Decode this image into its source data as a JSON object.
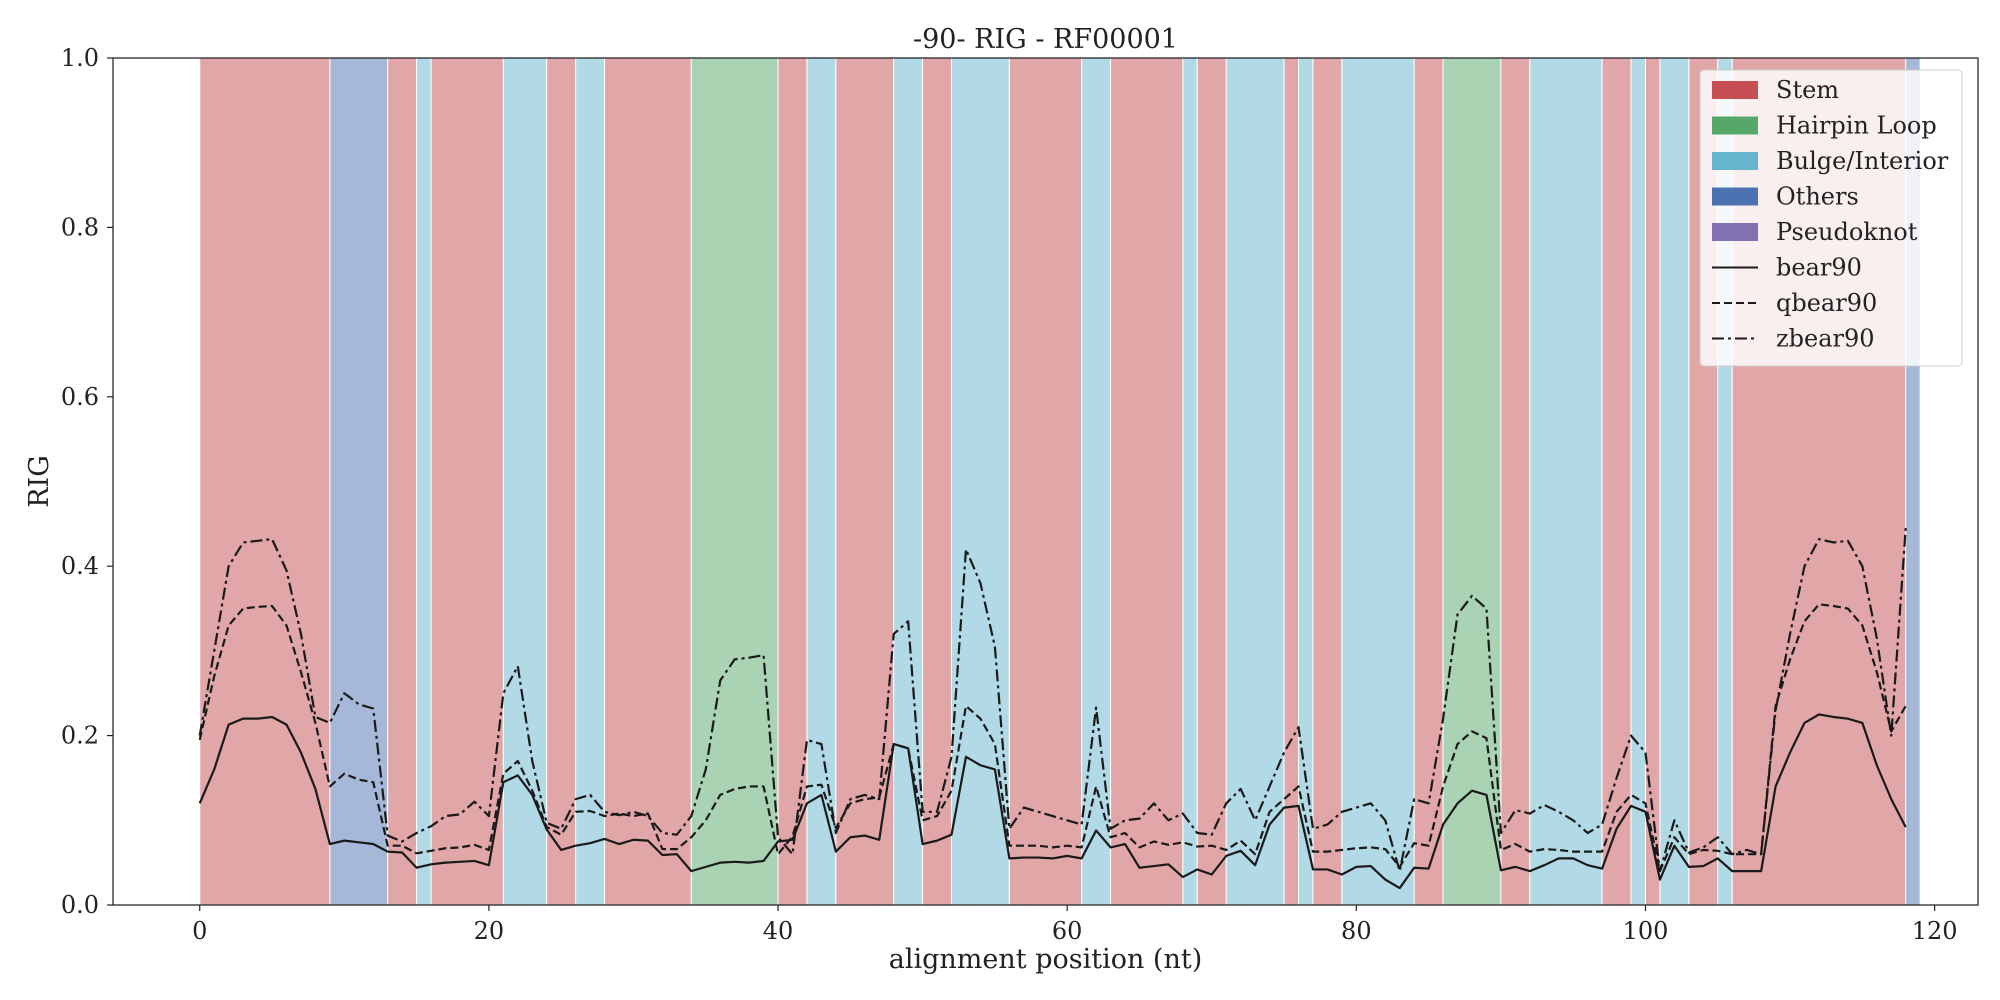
{
  "chart_data": {
    "type": "line",
    "title": "-90- RIG - RF00001",
    "xlabel": "alignment position (nt)",
    "ylabel": "RIG",
    "xlim": [
      -6,
      123
    ],
    "ylim": [
      0,
      1
    ],
    "xticks": [
      0,
      20,
      40,
      60,
      80,
      100,
      120
    ],
    "yticks": [
      0.0,
      0.2,
      0.4,
      0.6,
      0.8,
      1.0
    ],
    "xtick_labels": [
      "0",
      "20",
      "40",
      "60",
      "80",
      "100",
      "120"
    ],
    "ytick_labels": [
      "0.0",
      "0.2",
      "0.4",
      "0.6",
      "0.8",
      "1.0"
    ],
    "grid": false,
    "legend_position": "top-right",
    "colors": {
      "Stem": "#c44e52",
      "Hairpin Loop": "#55a868",
      "Bulge/Interior": "#64b5cd",
      "Others": "#4c72b0",
      "Pseudoknot": "#8172b2",
      "line": "#1a1a1a"
    },
    "legend": [
      {
        "label": "Stem",
        "kind": "patch",
        "color": "#c44e52"
      },
      {
        "label": "Hairpin Loop",
        "kind": "patch",
        "color": "#55a868"
      },
      {
        "label": "Bulge/Interior",
        "kind": "patch",
        "color": "#64b5cd"
      },
      {
        "label": "Others",
        "kind": "patch",
        "color": "#4c72b0"
      },
      {
        "label": "Pseudoknot",
        "kind": "patch",
        "color": "#8172b2"
      },
      {
        "label": "bear90",
        "kind": "line",
        "dash": "solid"
      },
      {
        "label": "qbear90",
        "kind": "line",
        "dash": "dashed"
      },
      {
        "label": "zbear90",
        "kind": "line",
        "dash": "dashdot"
      }
    ],
    "regions": [
      {
        "start": 0,
        "end": 9,
        "type": "Stem"
      },
      {
        "start": 9,
        "end": 13,
        "type": "Others"
      },
      {
        "start": 13,
        "end": 15,
        "type": "Stem"
      },
      {
        "start": 15,
        "end": 16,
        "type": "Bulge/Interior"
      },
      {
        "start": 16,
        "end": 21,
        "type": "Stem"
      },
      {
        "start": 21,
        "end": 24,
        "type": "Bulge/Interior"
      },
      {
        "start": 24,
        "end": 26,
        "type": "Stem"
      },
      {
        "start": 26,
        "end": 28,
        "type": "Bulge/Interior"
      },
      {
        "start": 28,
        "end": 34,
        "type": "Stem"
      },
      {
        "start": 34,
        "end": 40,
        "type": "Hairpin Loop"
      },
      {
        "start": 40,
        "end": 42,
        "type": "Stem"
      },
      {
        "start": 42,
        "end": 44,
        "type": "Bulge/Interior"
      },
      {
        "start": 44,
        "end": 48,
        "type": "Stem"
      },
      {
        "start": 48,
        "end": 50,
        "type": "Bulge/Interior"
      },
      {
        "start": 50,
        "end": 52,
        "type": "Stem"
      },
      {
        "start": 52,
        "end": 56,
        "type": "Bulge/Interior"
      },
      {
        "start": 56,
        "end": 61,
        "type": "Stem"
      },
      {
        "start": 61,
        "end": 63,
        "type": "Bulge/Interior"
      },
      {
        "start": 63,
        "end": 68,
        "type": "Stem"
      },
      {
        "start": 68,
        "end": 69,
        "type": "Bulge/Interior"
      },
      {
        "start": 69,
        "end": 71,
        "type": "Stem"
      },
      {
        "start": 71,
        "end": 75,
        "type": "Bulge/Interior"
      },
      {
        "start": 75,
        "end": 76,
        "type": "Stem"
      },
      {
        "start": 76,
        "end": 77,
        "type": "Bulge/Interior"
      },
      {
        "start": 77,
        "end": 79,
        "type": "Stem"
      },
      {
        "start": 79,
        "end": 84,
        "type": "Bulge/Interior"
      },
      {
        "start": 84,
        "end": 86,
        "type": "Stem"
      },
      {
        "start": 86,
        "end": 90,
        "type": "Hairpin Loop"
      },
      {
        "start": 90,
        "end": 92,
        "type": "Stem"
      },
      {
        "start": 92,
        "end": 97,
        "type": "Bulge/Interior"
      },
      {
        "start": 97,
        "end": 99,
        "type": "Stem"
      },
      {
        "start": 99,
        "end": 100,
        "type": "Bulge/Interior"
      },
      {
        "start": 100,
        "end": 101,
        "type": "Stem"
      },
      {
        "start": 101,
        "end": 103,
        "type": "Bulge/Interior"
      },
      {
        "start": 103,
        "end": 105,
        "type": "Stem"
      },
      {
        "start": 105,
        "end": 106,
        "type": "Bulge/Interior"
      },
      {
        "start": 106,
        "end": 118,
        "type": "Stem"
      },
      {
        "start": 118,
        "end": 119,
        "type": "Others"
      }
    ],
    "x": [
      0,
      1,
      2,
      3,
      4,
      5,
      6,
      7,
      8,
      9,
      10,
      11,
      12,
      13,
      14,
      15,
      16,
      17,
      18,
      19,
      20,
      21,
      22,
      23,
      24,
      25,
      26,
      27,
      28,
      29,
      30,
      31,
      32,
      33,
      34,
      35,
      36,
      37,
      38,
      39,
      40,
      41,
      42,
      43,
      44,
      45,
      46,
      47,
      48,
      49,
      50,
      51,
      52,
      53,
      54,
      55,
      56,
      57,
      58,
      59,
      60,
      61,
      62,
      63,
      64,
      65,
      66,
      67,
      68,
      69,
      70,
      71,
      72,
      73,
      74,
      75,
      76,
      77,
      78,
      79,
      80,
      81,
      82,
      83,
      84,
      85,
      86,
      87,
      88,
      89,
      90,
      91,
      92,
      93,
      94,
      95,
      96,
      97,
      98,
      99,
      100,
      101,
      102,
      103,
      104,
      105,
      106,
      107,
      108,
      109,
      110,
      111,
      112,
      113,
      114,
      115,
      116,
      117,
      118
    ],
    "series": [
      {
        "name": "bear90",
        "dash": "solid",
        "values": [
          0.12,
          0.16,
          0.213,
          0.22,
          0.22,
          0.222,
          0.213,
          0.18,
          0.137,
          0.072,
          0.076,
          0.074,
          0.072,
          0.063,
          0.062,
          0.044,
          0.048,
          0.05,
          0.051,
          0.052,
          0.047,
          0.145,
          0.153,
          0.13,
          0.089,
          0.065,
          0.07,
          0.073,
          0.078,
          0.072,
          0.077,
          0.076,
          0.059,
          0.06,
          0.04,
          0.045,
          0.05,
          0.051,
          0.05,
          0.052,
          0.075,
          0.077,
          0.12,
          0.13,
          0.063,
          0.08,
          0.082,
          0.077,
          0.19,
          0.185,
          0.072,
          0.076,
          0.083,
          0.175,
          0.165,
          0.16,
          0.055,
          0.056,
          0.056,
          0.055,
          0.058,
          0.055,
          0.088,
          0.068,
          0.072,
          0.044,
          0.046,
          0.048,
          0.033,
          0.042,
          0.036,
          0.058,
          0.064,
          0.047,
          0.095,
          0.115,
          0.117,
          0.042,
          0.042,
          0.036,
          0.045,
          0.046,
          0.03,
          0.02,
          0.044,
          0.043,
          0.095,
          0.12,
          0.135,
          0.13,
          0.041,
          0.045,
          0.04,
          0.047,
          0.055,
          0.055,
          0.047,
          0.043,
          0.09,
          0.117,
          0.11,
          0.03,
          0.07,
          0.045,
          0.046,
          0.055,
          0.04,
          0.04,
          0.04,
          0.14,
          0.18,
          0.215,
          0.225,
          0.222,
          0.22,
          0.215,
          0.165,
          0.125,
          0.092
        ]
      },
      {
        "name": "qbear90",
        "dash": "dashed",
        "values": [
          0.195,
          0.27,
          0.33,
          0.35,
          0.352,
          0.353,
          0.33,
          0.275,
          0.215,
          0.14,
          0.155,
          0.148,
          0.145,
          0.07,
          0.07,
          0.061,
          0.064,
          0.067,
          0.068,
          0.071,
          0.065,
          0.155,
          0.17,
          0.135,
          0.092,
          0.083,
          0.11,
          0.111,
          0.105,
          0.108,
          0.105,
          0.108,
          0.066,
          0.066,
          0.08,
          0.1,
          0.13,
          0.137,
          0.14,
          0.14,
          0.06,
          0.081,
          0.14,
          0.142,
          0.091,
          0.12,
          0.125,
          0.127,
          0.19,
          0.185,
          0.1,
          0.105,
          0.135,
          0.235,
          0.22,
          0.19,
          0.07,
          0.07,
          0.07,
          0.068,
          0.07,
          0.068,
          0.14,
          0.08,
          0.085,
          0.068,
          0.075,
          0.071,
          0.074,
          0.069,
          0.07,
          0.065,
          0.076,
          0.06,
          0.11,
          0.125,
          0.14,
          0.063,
          0.063,
          0.065,
          0.067,
          0.068,
          0.066,
          0.045,
          0.073,
          0.07,
          0.14,
          0.19,
          0.205,
          0.197,
          0.065,
          0.072,
          0.063,
          0.066,
          0.065,
          0.063,
          0.063,
          0.063,
          0.11,
          0.13,
          0.12,
          0.04,
          0.08,
          0.06,
          0.065,
          0.064,
          0.06,
          0.06,
          0.06,
          0.235,
          0.29,
          0.335,
          0.355,
          0.353,
          0.35,
          0.33,
          0.275,
          0.205,
          0.235
        ]
      },
      {
        "name": "zbear90",
        "dash": "dashdot",
        "values": [
          0.2,
          0.3,
          0.4,
          0.428,
          0.43,
          0.432,
          0.395,
          0.32,
          0.222,
          0.215,
          0.25,
          0.237,
          0.232,
          0.082,
          0.075,
          0.085,
          0.093,
          0.105,
          0.107,
          0.122,
          0.105,
          0.25,
          0.282,
          0.17,
          0.097,
          0.09,
          0.125,
          0.13,
          0.11,
          0.106,
          0.11,
          0.105,
          0.085,
          0.083,
          0.105,
          0.16,
          0.265,
          0.29,
          0.292,
          0.295,
          0.08,
          0.06,
          0.195,
          0.19,
          0.085,
          0.125,
          0.13,
          0.125,
          0.32,
          0.335,
          0.11,
          0.11,
          0.175,
          0.42,
          0.38,
          0.305,
          0.09,
          0.115,
          0.11,
          0.105,
          0.1,
          0.095,
          0.233,
          0.09,
          0.1,
          0.102,
          0.12,
          0.1,
          0.108,
          0.085,
          0.083,
          0.12,
          0.137,
          0.1,
          0.14,
          0.18,
          0.21,
          0.09,
          0.095,
          0.11,
          0.115,
          0.12,
          0.1,
          0.04,
          0.125,
          0.12,
          0.22,
          0.343,
          0.365,
          0.35,
          0.085,
          0.112,
          0.108,
          0.118,
          0.11,
          0.1,
          0.085,
          0.095,
          0.15,
          0.2,
          0.18,
          0.04,
          0.1,
          0.062,
          0.068,
          0.08,
          0.06,
          0.065,
          0.06,
          0.23,
          0.32,
          0.4,
          0.432,
          0.428,
          0.43,
          0.4,
          0.315,
          0.2,
          0.445
        ]
      }
    ]
  }
}
